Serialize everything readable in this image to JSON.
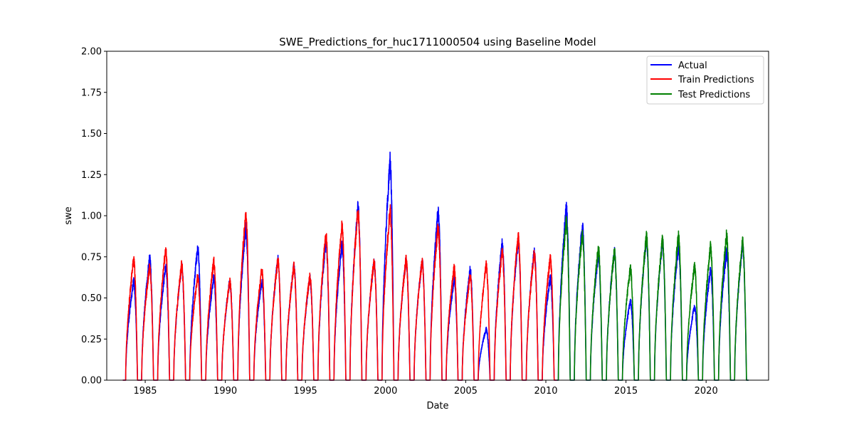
{
  "chart_data": {
    "type": "line",
    "title": "SWE_Predictions_for_huc1711000504 using Baseline Model",
    "xlabel": "Date",
    "ylabel": "swe",
    "xlim": [
      1982.6,
      2023.9
    ],
    "ylim": [
      0,
      2.0
    ],
    "x_ticks": [
      1985,
      1990,
      1995,
      2000,
      2005,
      2010,
      2015,
      2020
    ],
    "y_ticks": [
      0.0,
      0.25,
      0.5,
      0.75,
      1.0,
      1.25,
      1.5,
      1.75,
      2.0
    ],
    "y_tick_labels": [
      "0.00",
      "0.25",
      "0.50",
      "0.75",
      "1.00",
      "1.25",
      "1.50",
      "1.75",
      "2.00"
    ],
    "grid": false,
    "legend_position": "top-right",
    "seasons": {
      "start_years": [
        1983,
        1984,
        1985,
        1986,
        1987,
        1988,
        1989,
        1990,
        1991,
        1992,
        1993,
        1994,
        1995,
        1996,
        1997,
        1998,
        1999,
        2000,
        2001,
        2002,
        2003,
        2004,
        2005,
        2006,
        2007,
        2008,
        2009,
        2010,
        2011,
        2012,
        2013,
        2014,
        2015,
        2016,
        2017,
        2018,
        2019,
        2020,
        2021
      ],
      "actual_peak_swe": [
        0.6,
        0.74,
        0.69,
        0.69,
        0.8,
        0.62,
        0.6,
        0.92,
        0.6,
        0.73,
        0.69,
        0.62,
        0.84,
        0.82,
        1.05,
        0.72,
        1.33,
        0.73,
        0.72,
        1.03,
        0.61,
        0.67,
        0.31,
        0.83,
        0.85,
        0.78,
        0.62,
        1.05,
        0.94,
        0.76,
        0.78,
        0.48,
        0.86,
        0.84,
        0.81,
        0.45,
        0.67,
        0.78,
        0.82
      ],
      "predicted_peak_swe": [
        0.73,
        0.69,
        0.79,
        0.7,
        0.63,
        0.72,
        0.6,
        1.01,
        0.67,
        0.73,
        0.69,
        0.63,
        0.88,
        0.93,
        1.03,
        0.72,
        1.03,
        0.73,
        0.72,
        0.93,
        0.68,
        0.63,
        0.7,
        0.78,
        0.87,
        0.77,
        0.74,
        0.96,
        0.89,
        0.8,
        0.78,
        0.68,
        0.87,
        0.85,
        0.88,
        0.69,
        0.81,
        0.88,
        0.84
      ],
      "test_start_season": 2010
    },
    "series": [
      {
        "name": "Actual",
        "color": "#0000ff"
      },
      {
        "name": "Train Predictions",
        "color": "#ff0000"
      },
      {
        "name": "Test Predictions",
        "color": "#008000"
      }
    ]
  }
}
